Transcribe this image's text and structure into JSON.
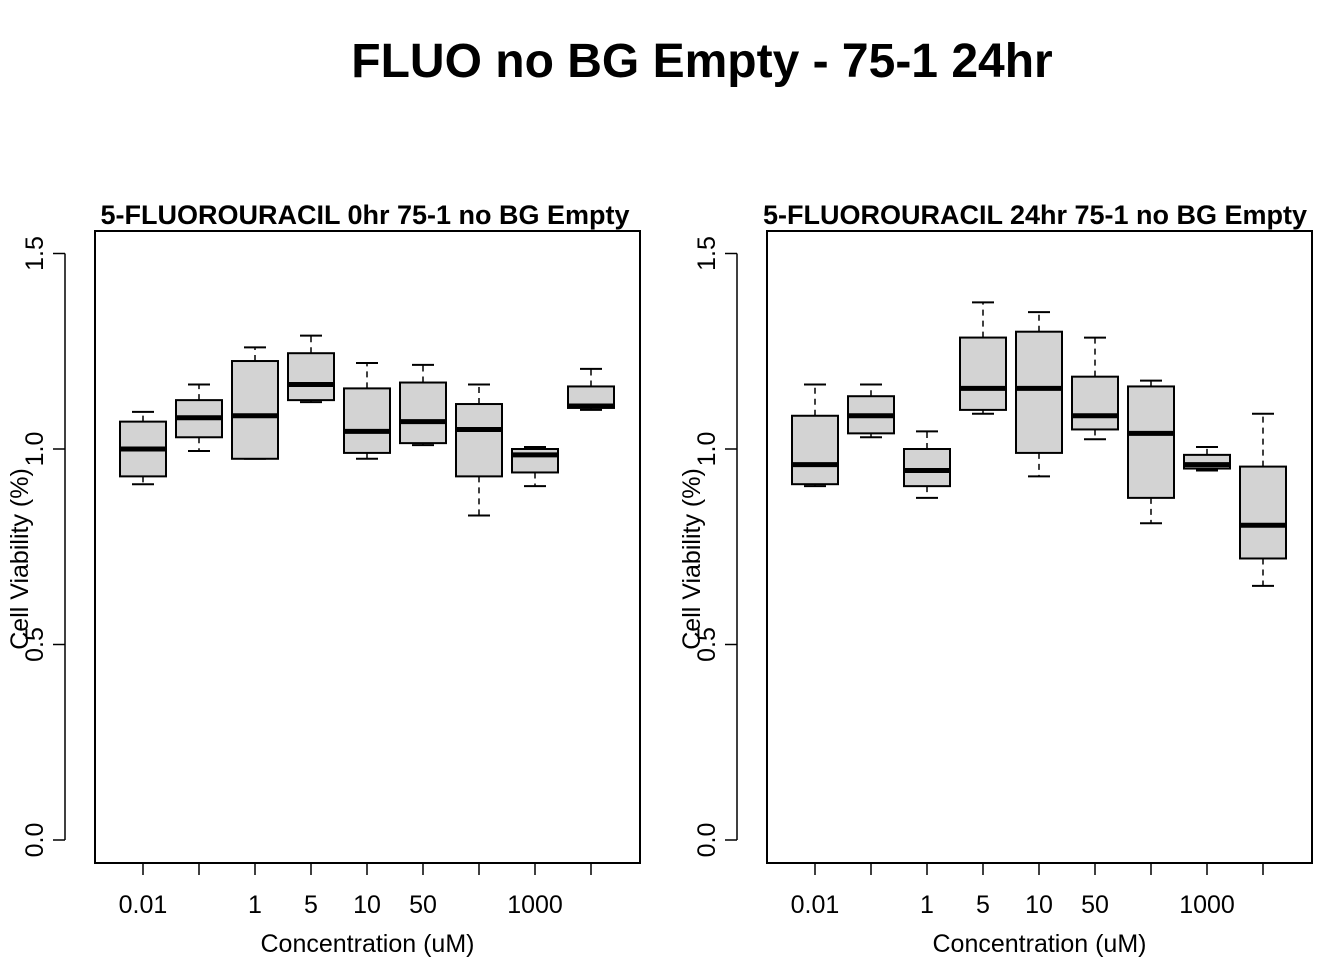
{
  "title": "FLUO no BG Empty - 75-1 24hr",
  "chart_data": [
    {
      "type": "box",
      "title": "5-FLUOROURACIL 0hr 75-1 no BG Empty",
      "xlabel": "Concentration (uM)",
      "ylabel": "Cell Viability (%)",
      "ylim": [
        0,
        1.5
      ],
      "yticks": [
        "0.0",
        "0.5",
        "1.0",
        "1.5"
      ],
      "xticklabels": [
        "0.01",
        "",
        "1",
        "5",
        "10",
        "50",
        "",
        "1000",
        ""
      ],
      "boxes": [
        {
          "min": 0.91,
          "q1": 0.93,
          "median": 1.0,
          "q3": 1.07,
          "max": 1.095
        },
        {
          "min": 0.995,
          "q1": 1.03,
          "median": 1.08,
          "q3": 1.125,
          "max": 1.165
        },
        {
          "min": 0.975,
          "q1": 0.975,
          "median": 1.085,
          "q3": 1.225,
          "max": 1.26
        },
        {
          "min": 1.12,
          "q1": 1.125,
          "median": 1.165,
          "q3": 1.245,
          "max": 1.29
        },
        {
          "min": 0.975,
          "q1": 0.99,
          "median": 1.045,
          "q3": 1.155,
          "max": 1.22
        },
        {
          "min": 1.01,
          "q1": 1.015,
          "median": 1.07,
          "q3": 1.17,
          "max": 1.215
        },
        {
          "min": 0.83,
          "q1": 0.93,
          "median": 1.05,
          "q3": 1.115,
          "max": 1.165
        },
        {
          "min": 0.905,
          "q1": 0.94,
          "median": 0.985,
          "q3": 1.0,
          "max": 1.005
        },
        {
          "min": 1.1,
          "q1": 1.105,
          "median": 1.11,
          "q3": 1.16,
          "max": 1.205
        }
      ]
    },
    {
      "type": "box",
      "title": "5-FLUOROURACIL 24hr 75-1 no BG Empty",
      "xlabel": "Concentration (uM)",
      "ylabel": "Cell Viability (%)",
      "ylim": [
        0,
        1.5
      ],
      "yticks": [
        "0.0",
        "0.5",
        "1.0",
        "1.5"
      ],
      "xticklabels": [
        "0.01",
        "",
        "1",
        "5",
        "10",
        "50",
        "",
        "1000",
        ""
      ],
      "boxes": [
        {
          "min": 0.905,
          "q1": 0.91,
          "median": 0.96,
          "q3": 1.085,
          "max": 1.165
        },
        {
          "min": 1.03,
          "q1": 1.04,
          "median": 1.085,
          "q3": 1.135,
          "max": 1.165
        },
        {
          "min": 0.875,
          "q1": 0.905,
          "median": 0.945,
          "q3": 1.0,
          "max": 1.045
        },
        {
          "min": 1.09,
          "q1": 1.1,
          "median": 1.155,
          "q3": 1.285,
          "max": 1.375
        },
        {
          "min": 0.93,
          "q1": 0.99,
          "median": 1.155,
          "q3": 1.3,
          "max": 1.35
        },
        {
          "min": 1.025,
          "q1": 1.05,
          "median": 1.085,
          "q3": 1.185,
          "max": 1.285
        },
        {
          "min": 0.81,
          "q1": 0.875,
          "median": 1.04,
          "q3": 1.16,
          "max": 1.175
        },
        {
          "min": 0.945,
          "q1": 0.95,
          "median": 0.96,
          "q3": 0.985,
          "max": 1.005
        },
        {
          "min": 0.65,
          "q1": 0.72,
          "median": 0.805,
          "q3": 0.955,
          "max": 1.09
        }
      ]
    }
  ]
}
